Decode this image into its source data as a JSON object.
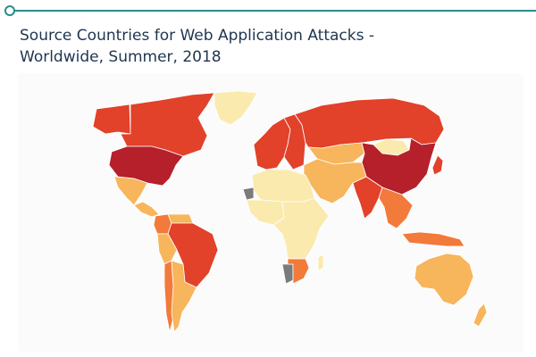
{
  "title": {
    "line1": "Source Countries for Web Application Attacks -",
    "line2": "Worldwide, Summer, 2018"
  },
  "palette": {
    "very_high": "#b5202a",
    "high": "#e2412a",
    "medium": "#f27a3a",
    "low": "#f7b55c",
    "very_low": "#faeaae",
    "no_data": "#7b7b7b",
    "rule": "#2a8c8c"
  },
  "regions": [
    {
      "id": "usa",
      "level": "very_high"
    },
    {
      "id": "canada",
      "level": "high"
    },
    {
      "id": "alaska",
      "level": "high"
    },
    {
      "id": "greenland",
      "level": "very_low"
    },
    {
      "id": "mexico",
      "level": "low"
    },
    {
      "id": "central-america",
      "level": "low"
    },
    {
      "id": "colombia",
      "level": "medium"
    },
    {
      "id": "venezuela",
      "level": "low"
    },
    {
      "id": "brazil",
      "level": "high"
    },
    {
      "id": "peru",
      "level": "low"
    },
    {
      "id": "argentina",
      "level": "low"
    },
    {
      "id": "chile",
      "level": "medium"
    },
    {
      "id": "western-europe",
      "level": "high"
    },
    {
      "id": "eastern-europe",
      "level": "high"
    },
    {
      "id": "russia",
      "level": "high"
    },
    {
      "id": "kazakhstan",
      "level": "low"
    },
    {
      "id": "mongolia",
      "level": "very_low"
    },
    {
      "id": "china",
      "level": "very_high"
    },
    {
      "id": "india",
      "level": "high"
    },
    {
      "id": "middle-east",
      "level": "low"
    },
    {
      "id": "north-africa",
      "level": "very_low"
    },
    {
      "id": "west-africa",
      "level": "very_low"
    },
    {
      "id": "western-sahara",
      "level": "no_data"
    },
    {
      "id": "central-africa",
      "level": "very_low"
    },
    {
      "id": "namibia",
      "level": "no_data"
    },
    {
      "id": "south-africa",
      "level": "medium"
    },
    {
      "id": "madagascar",
      "level": "very_low"
    },
    {
      "id": "southeast-asia",
      "level": "medium"
    },
    {
      "id": "indonesia",
      "level": "medium"
    },
    {
      "id": "japan",
      "level": "high"
    },
    {
      "id": "australia",
      "level": "low"
    },
    {
      "id": "new-zealand",
      "level": "low"
    }
  ]
}
